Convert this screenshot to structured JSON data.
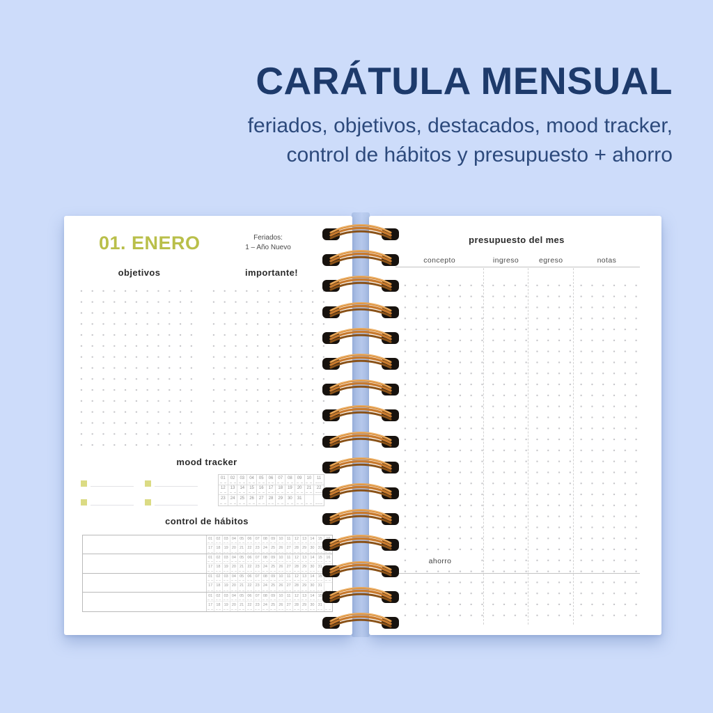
{
  "header": {
    "title": "CARÁTULA MENSUAL",
    "subtitle_line1": "feriados, objetivos, destacados, mood tracker,",
    "subtitle_line2": "control de hábitos y presupuesto + ahorro"
  },
  "colors": {
    "background": "#cddcfa",
    "title_navy": "#1d3a6b",
    "month_green": "#b9bf4a",
    "legend_square": "#dbdb84",
    "spiral_copper": "#c87a2e"
  },
  "left_page": {
    "month_title": "01. ENERO",
    "feriados_label": "Feriados:",
    "feriados_value": "1 – Año Nuevo",
    "objetivos_title": "objetivos",
    "importante_title": "importante!",
    "mood_tracker_title": "mood tracker",
    "mood_grid_rows": [
      [
        "01",
        "02",
        "03",
        "04",
        "05",
        "06",
        "07",
        "08",
        "09",
        "10",
        "11"
      ],
      [
        "12",
        "13",
        "14",
        "15",
        "16",
        "17",
        "18",
        "19",
        "20",
        "21",
        "22"
      ],
      [
        "23",
        "24",
        "25",
        "26",
        "27",
        "28",
        "29",
        "30",
        "31",
        "",
        ""
      ]
    ],
    "habitos_title": "control de hábitos",
    "habit_row_count": 4,
    "habit_day_rows": [
      [
        "01",
        "02",
        "03",
        "04",
        "05",
        "06",
        "07",
        "08",
        "09",
        "10",
        "11",
        "12",
        "13",
        "14",
        "15",
        "16"
      ],
      [
        "17",
        "18",
        "19",
        "20",
        "21",
        "22",
        "23",
        "24",
        "25",
        "26",
        "27",
        "28",
        "29",
        "30",
        "31",
        ""
      ]
    ]
  },
  "right_page": {
    "title": "presupuesto del mes",
    "columns": [
      "concepto",
      "ingreso",
      "egreso",
      "notas"
    ],
    "ahorro_label": "ahorro"
  },
  "spiral": {
    "ring_count": 16
  }
}
